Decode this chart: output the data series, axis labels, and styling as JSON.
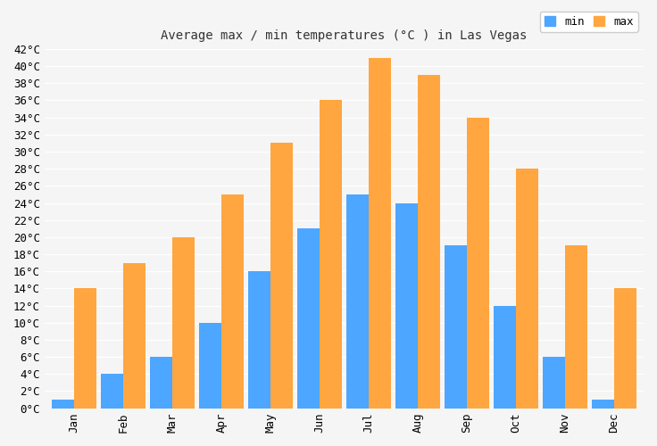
{
  "title": "Average max / min temperatures (°C ) in Las Vegas",
  "months": [
    "Jan",
    "Feb",
    "Mar",
    "Apr",
    "May",
    "Jun",
    "Jul",
    "Aug",
    "Sep",
    "Oct",
    "Nov",
    "Dec"
  ],
  "min_temps": [
    1,
    4,
    6,
    10,
    16,
    21,
    25,
    24,
    19,
    12,
    6,
    1
  ],
  "max_temps": [
    14,
    17,
    20,
    25,
    31,
    36,
    41,
    39,
    34,
    28,
    19,
    14
  ],
  "min_color": "#4da6ff",
  "max_color": "#ffa640",
  "ylim": [
    0,
    42
  ],
  "ytick_step": 2,
  "background_color": "#f5f5f5",
  "plot_bg_color": "#f5f5f5",
  "grid_color": "#ffffff",
  "bar_width": 0.45,
  "legend_labels": [
    "min",
    "max"
  ],
  "title_fontsize": 10,
  "tick_fontsize": 9,
  "legend_fontsize": 9
}
